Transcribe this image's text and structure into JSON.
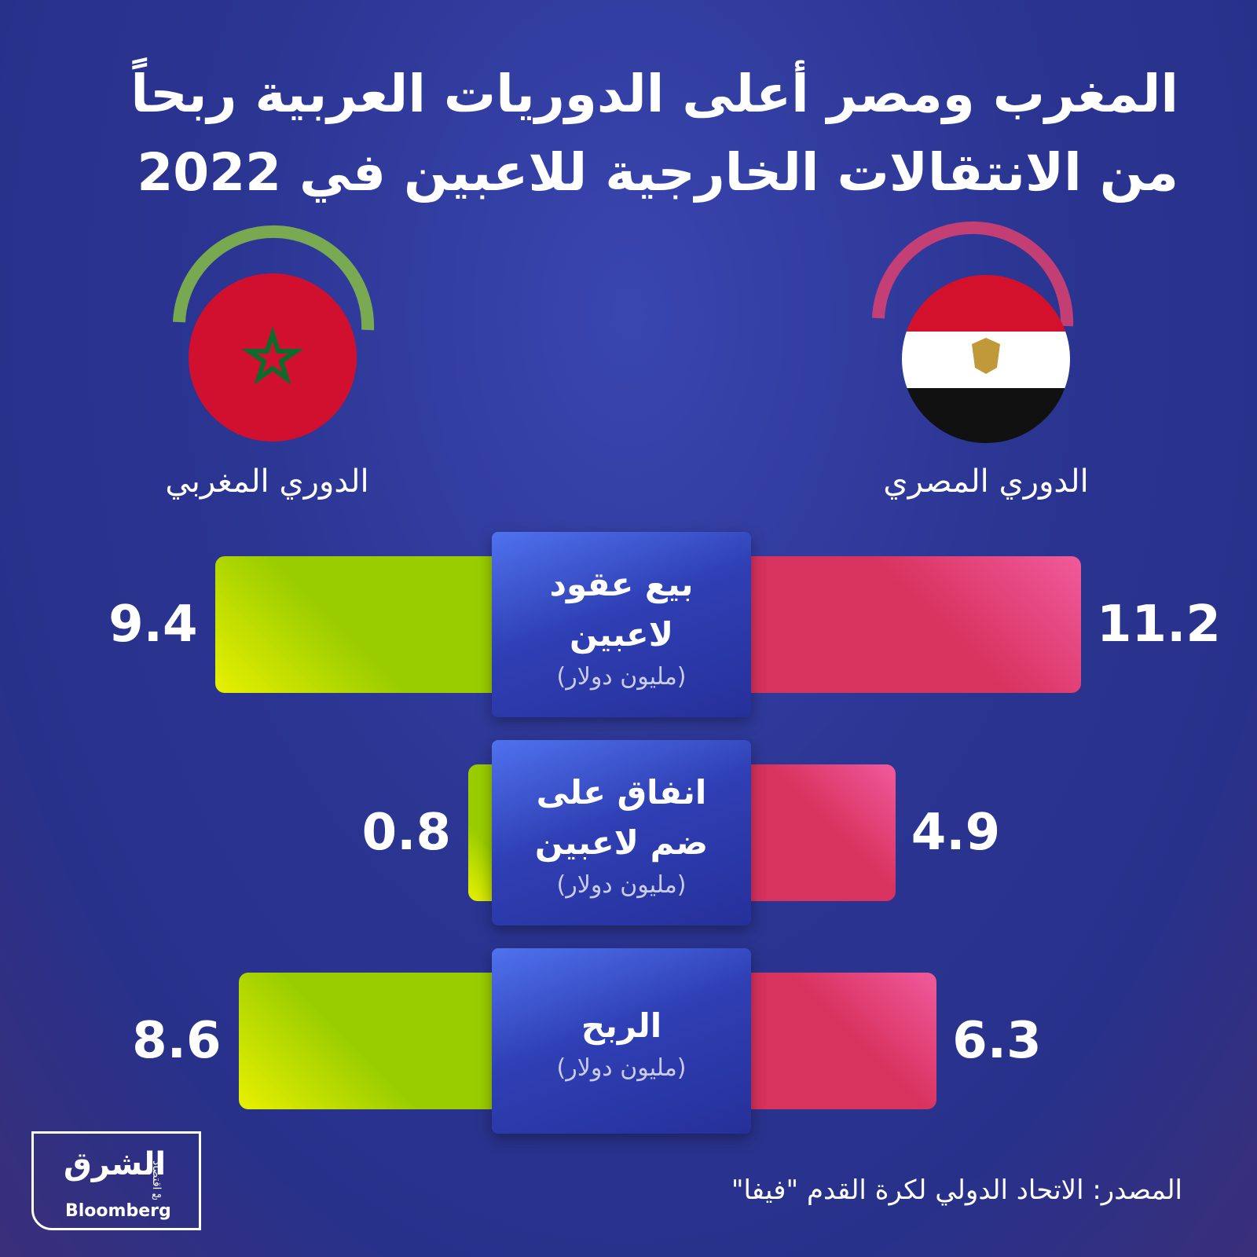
{
  "chart_data": {
    "type": "butterfly",
    "title": "المغرب ومصر أعلى الدوريات العربية ربحاً من الانتقالات الخارجية للاعبين في 2022",
    "categories": [
      "بيع عقود لاعبين",
      "انفاق على ضم لاعبين",
      "الربح"
    ],
    "unit": "(مليون دولار)",
    "series": [
      {
        "name": "الدوري المصري",
        "color": "#d8325e",
        "values": [
          11.2,
          4.9,
          6.3
        ]
      },
      {
        "name": "الدوري المغربي",
        "color": "#9acd00",
        "values": [
          9.4,
          0.8,
          8.6
        ]
      }
    ],
    "source": "المصدر: الاتحاد الدولي لكرة القدم \"فيفا\"",
    "brand": {
      "name": "الشرق",
      "sub": "اقتصاد",
      "with": "مع",
      "partner": "Bloomberg"
    }
  }
}
